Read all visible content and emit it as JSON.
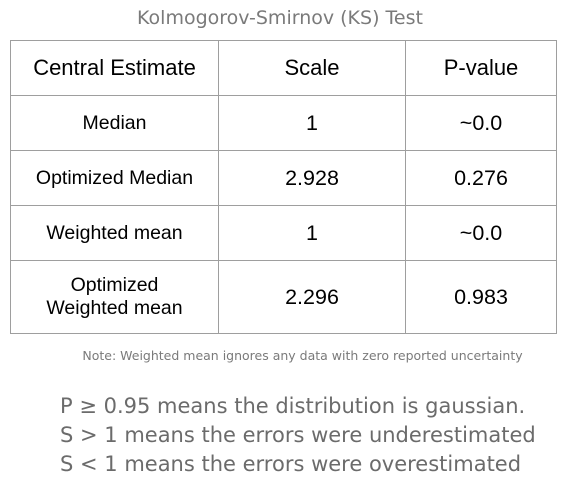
{
  "title": "Kolmogorov-Smirnov (KS) Test",
  "table": {
    "headers": [
      "Central Estimate",
      "Scale",
      "P-value"
    ],
    "rows": [
      {
        "estimate": "Median",
        "scale": "1",
        "pvalue": "~0.0"
      },
      {
        "estimate": "Optimized Median",
        "scale": "2.928",
        "pvalue": "0.276"
      },
      {
        "estimate": "Weighted mean",
        "scale": "1",
        "pvalue": "~0.0"
      },
      {
        "estimate_line1": "Optimized",
        "estimate_line2": "Weighted mean",
        "scale": "2.296",
        "pvalue": "0.983"
      }
    ]
  },
  "note": "Note: Weighted mean ignores any data with zero reported uncertainty",
  "legend": [
    "P ≥ 0.95 means the distribution is gaussian.",
    "S > 1 means the errors were underestimated",
    "S < 1 means the errors were overestimated"
  ],
  "colors": {
    "title": "#7a7a7a",
    "border": "#9e9e9e",
    "legend": "#6b6b6b"
  }
}
